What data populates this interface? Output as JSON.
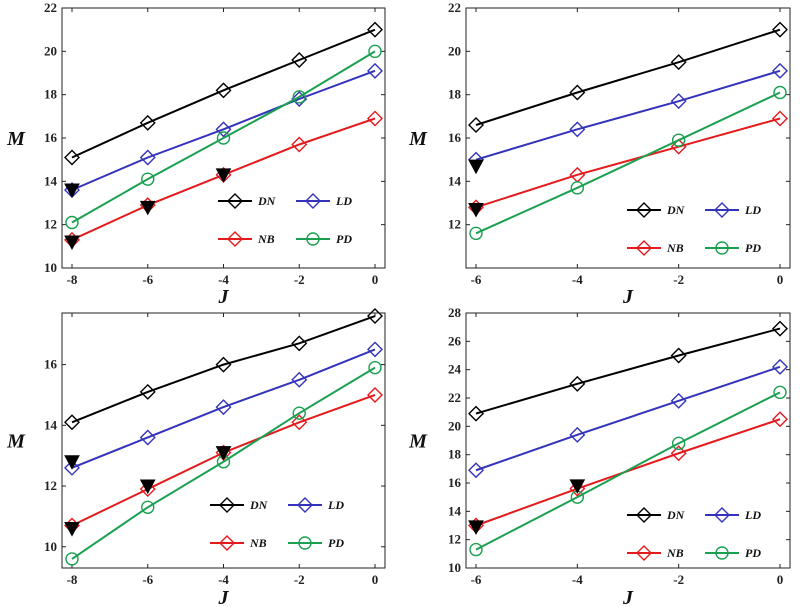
{
  "figure_title": "",
  "chart_data": [
    {
      "type": "line",
      "panel": "top-left",
      "title": "",
      "xlabel": "J",
      "ylabel": "M",
      "xlim": [
        -8,
        0
      ],
      "ylim": [
        10,
        22
      ],
      "xticks": [
        "-8",
        "-6",
        "-4",
        "-2",
        "0"
      ],
      "yticks": [
        "10",
        "12",
        "14",
        "16",
        "18",
        "20",
        "22"
      ],
      "legend": [
        "DN",
        "LD",
        "NB",
        "PD"
      ],
      "series": [
        {
          "name": "DN",
          "color": "#000000",
          "marker": "diamond",
          "x": [
            -8,
            -6,
            -4,
            -2,
            0
          ],
          "y": [
            15.1,
            16.7,
            18.2,
            19.6,
            21.0
          ]
        },
        {
          "name": "LD",
          "color": "#3333bb",
          "marker": "diamond",
          "x": [
            -8,
            -6,
            -4,
            -2,
            0
          ],
          "y": [
            13.6,
            15.1,
            16.4,
            17.8,
            19.1
          ]
        },
        {
          "name": "NB",
          "color": "#e41a1c",
          "marker": "diamond",
          "x": [
            -8,
            -6,
            -4,
            -2,
            0
          ],
          "y": [
            11.3,
            12.9,
            14.3,
            15.7,
            16.9
          ]
        },
        {
          "name": "PD",
          "color": "#1aa050",
          "marker": "circle",
          "x": [
            -8,
            -6,
            -4,
            -2,
            0
          ],
          "y": [
            12.1,
            14.1,
            16.0,
            17.9,
            20.0
          ]
        }
      ],
      "filled_triangles": {
        "x": [
          -8,
          -8,
          -6,
          -4
        ],
        "y": [
          13.6,
          11.2,
          12.8,
          14.3
        ]
      }
    },
    {
      "type": "line",
      "panel": "top-right",
      "title": "",
      "xlabel": "J",
      "ylabel": "M",
      "xlim": [
        -6,
        0
      ],
      "ylim": [
        10,
        22
      ],
      "xticks": [
        "-6",
        "-4",
        "-2",
        "0"
      ],
      "yticks": [
        "12",
        "14",
        "16",
        "18",
        "20",
        "22"
      ],
      "legend": [
        "DN",
        "LD",
        "NB",
        "PD"
      ],
      "series": [
        {
          "name": "DN",
          "color": "#000000",
          "marker": "diamond",
          "x": [
            -6,
            -4,
            -2,
            0
          ],
          "y": [
            16.6,
            18.1,
            19.5,
            21.0
          ]
        },
        {
          "name": "LD",
          "color": "#3333bb",
          "marker": "diamond",
          "x": [
            -6,
            -4,
            -2,
            0
          ],
          "y": [
            15.0,
            16.4,
            17.7,
            19.1
          ]
        },
        {
          "name": "NB",
          "color": "#e41a1c",
          "marker": "diamond",
          "x": [
            -6,
            -4,
            -2,
            0
          ],
          "y": [
            12.8,
            14.3,
            15.6,
            16.9
          ]
        },
        {
          "name": "PD",
          "color": "#1aa050",
          "marker": "circle",
          "x": [
            -6,
            -4,
            -2,
            0
          ],
          "y": [
            11.6,
            13.7,
            15.9,
            18.1
          ]
        }
      ],
      "filled_triangles": {
        "x": [
          -6,
          -6
        ],
        "y": [
          14.7,
          12.7
        ]
      }
    },
    {
      "type": "line",
      "panel": "bottom-left",
      "title": "",
      "xlabel": "J",
      "ylabel": "M",
      "xlim": [
        -8,
        0
      ],
      "ylim": [
        9.3,
        17.7
      ],
      "xticks": [
        "-8",
        "-6",
        "-4",
        "-2",
        "0"
      ],
      "yticks": [
        "10",
        "12",
        "14",
        "16"
      ],
      "legend": [
        "DN",
        "LD",
        "NB",
        "PD"
      ],
      "series": [
        {
          "name": "DN",
          "color": "#000000",
          "marker": "diamond",
          "x": [
            -8,
            -6,
            -4,
            -2,
            0
          ],
          "y": [
            14.1,
            15.1,
            16.0,
            16.7,
            17.6
          ]
        },
        {
          "name": "LD",
          "color": "#3333bb",
          "marker": "diamond",
          "x": [
            -8,
            -6,
            -4,
            -2,
            0
          ],
          "y": [
            12.6,
            13.6,
            14.6,
            15.5,
            16.5
          ]
        },
        {
          "name": "NB",
          "color": "#e41a1c",
          "marker": "diamond",
          "x": [
            -8,
            -6,
            -4,
            -2,
            0
          ],
          "y": [
            10.7,
            11.9,
            13.1,
            14.1,
            15.0
          ]
        },
        {
          "name": "PD",
          "color": "#1aa050",
          "marker": "circle",
          "x": [
            -8,
            -6,
            -4,
            -2,
            0
          ],
          "y": [
            9.6,
            11.3,
            12.8,
            14.4,
            15.9
          ]
        }
      ],
      "filled_triangles": {
        "x": [
          -8,
          -8,
          -6,
          -4
        ],
        "y": [
          12.8,
          10.6,
          12.0,
          13.1
        ]
      }
    },
    {
      "type": "line",
      "panel": "bottom-right",
      "title": "",
      "xlabel": "J",
      "ylabel": "M",
      "xlim": [
        -6,
        0
      ],
      "ylim": [
        10,
        28
      ],
      "xticks": [
        "-6",
        "-4",
        "-2",
        "0"
      ],
      "yticks": [
        "10",
        "12",
        "14",
        "16",
        "18",
        "20",
        "22",
        "24",
        "26",
        "28"
      ],
      "legend": [
        "DN",
        "LD",
        "NB",
        "PD"
      ],
      "series": [
        {
          "name": "DN",
          "color": "#000000",
          "marker": "diamond",
          "x": [
            -6,
            -4,
            -2,
            0
          ],
          "y": [
            20.9,
            23.0,
            25.0,
            26.9
          ]
        },
        {
          "name": "LD",
          "color": "#3333bb",
          "marker": "diamond",
          "x": [
            -6,
            -4,
            -2,
            0
          ],
          "y": [
            16.9,
            19.4,
            21.8,
            24.2
          ]
        },
        {
          "name": "NB",
          "color": "#e41a1c",
          "marker": "diamond",
          "x": [
            -6,
            -4,
            -2,
            0
          ],
          "y": [
            13.0,
            15.6,
            18.1,
            20.5
          ]
        },
        {
          "name": "PD",
          "color": "#1aa050",
          "marker": "circle",
          "x": [
            -6,
            -4,
            -2,
            0
          ],
          "y": [
            11.3,
            15.0,
            18.8,
            22.4
          ]
        }
      ],
      "filled_triangles": {
        "x": [
          -6,
          -4
        ],
        "y": [
          12.9,
          15.8
        ]
      }
    }
  ]
}
